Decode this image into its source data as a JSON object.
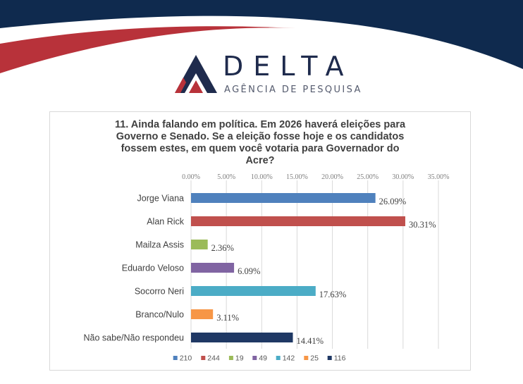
{
  "brand": {
    "name": "DELTA",
    "tagline": "AGÊNCIA DE PESQUISA",
    "colors": {
      "navy": "#1f2b4d",
      "red": "#b8323a",
      "banner": "#0f2a4e"
    }
  },
  "chart_data": {
    "type": "bar",
    "orientation": "horizontal",
    "title": "11. Ainda falando em política. Em 2026 haverá eleições para Governo e Senado. Se a eleição fosse hoje e os candidatos fossem estes, em quem você votaria para Governador do Acre?",
    "title_lines": [
      "11. Ainda falando em política. Em 2026 haverá eleições para",
      "Governo e Senado. Se a eleição fosse hoje e os candidatos",
      "fossem estes, em quem você votaria para Governador do",
      "Acre?"
    ],
    "categories": [
      "Jorge Viana",
      "Alan Rick",
      "Mailza Assis",
      "Eduardo Veloso",
      "Socorro Neri",
      "Branco/Nulo",
      "Não sabe/Não respondeu"
    ],
    "values": [
      26.09,
      30.31,
      2.36,
      6.09,
      17.63,
      3.11,
      14.41
    ],
    "value_labels": [
      "26.09%",
      "30.31%",
      "2.36%",
      "6.09%",
      "17.63%",
      "3.11%",
      "14.41%"
    ],
    "colors": [
      "#4f81bd",
      "#c0504d",
      "#9bbb59",
      "#8064a2",
      "#4bacc6",
      "#f79646",
      "#1f3864"
    ],
    "xlim": [
      0,
      35
    ],
    "xticks": [
      0,
      5,
      10,
      15,
      20,
      25,
      30,
      35
    ],
    "xtick_labels": [
      "0.00%",
      "5.00%",
      "10.00%",
      "15.00%",
      "20.00%",
      "25.00%",
      "30.00%",
      "35.00%"
    ],
    "x_axis_position": "top",
    "grid": true,
    "legend": {
      "position": "bottom",
      "entries": [
        "210",
        "244",
        "19",
        "49",
        "142",
        "25",
        "116"
      ]
    }
  }
}
